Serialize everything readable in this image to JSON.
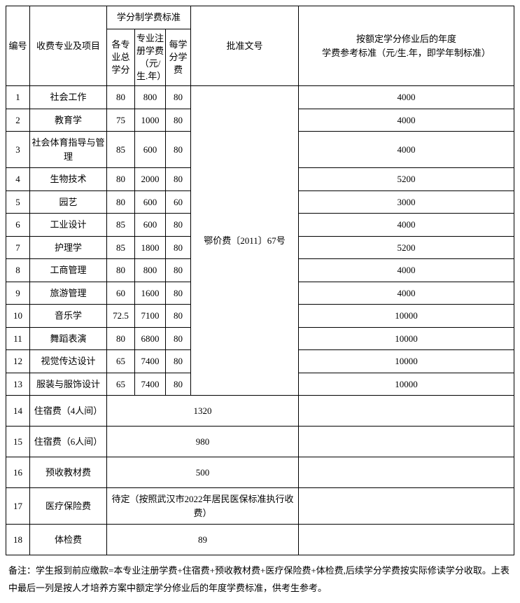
{
  "header": {
    "col_index": "编号",
    "col_item": "收费专业及项目",
    "col_credit_group": "学分制学费标准",
    "col_total_credit": "各专业总学分",
    "col_reg_fee": "专业注册学费（元/生.年）",
    "col_per_credit": "每学分学费",
    "col_approval": "批准文号",
    "col_annual": "按额定学分修业后的年度\n学费参考标准（元/生.年，即学年制标准）"
  },
  "approval_doc": "鄂价费〔2011〕67号",
  "rows": [
    {
      "idx": "1",
      "item": "社会工作",
      "credit": "80",
      "reg": "800",
      "per": "80",
      "annual": "4000"
    },
    {
      "idx": "2",
      "item": "教育学",
      "credit": "75",
      "reg": "1000",
      "per": "80",
      "annual": "4000"
    },
    {
      "idx": "3",
      "item": "社会体育指导与管理",
      "credit": "85",
      "reg": "600",
      "per": "80",
      "annual": "4000"
    },
    {
      "idx": "4",
      "item": "生物技术",
      "credit": "80",
      "reg": "2000",
      "per": "80",
      "annual": "5200"
    },
    {
      "idx": "5",
      "item": "园艺",
      "credit": "80",
      "reg": "600",
      "per": "60",
      "annual": "3000"
    },
    {
      "idx": "6",
      "item": "工业设计",
      "credit": "85",
      "reg": "600",
      "per": "80",
      "annual": "4000"
    },
    {
      "idx": "7",
      "item": "护理学",
      "credit": "85",
      "reg": "1800",
      "per": "80",
      "annual": "5200"
    },
    {
      "idx": "8",
      "item": "工商管理",
      "credit": "80",
      "reg": "800",
      "per": "80",
      "annual": "4000"
    },
    {
      "idx": "9",
      "item": "旅游管理",
      "credit": "60",
      "reg": "1600",
      "per": "80",
      "annual": "4000"
    },
    {
      "idx": "10",
      "item": "音乐学",
      "credit": "72.5",
      "reg": "7100",
      "per": "80",
      "annual": "10000"
    },
    {
      "idx": "11",
      "item": "舞蹈表演",
      "credit": "80",
      "reg": "6800",
      "per": "80",
      "annual": "10000"
    },
    {
      "idx": "12",
      "item": "视觉传达设计",
      "credit": "65",
      "reg": "7400",
      "per": "80",
      "annual": "10000"
    },
    {
      "idx": "13",
      "item": "服装与服饰设计",
      "credit": "65",
      "reg": "7400",
      "per": "80",
      "annual": "10000"
    }
  ],
  "extra_rows": [
    {
      "idx": "14",
      "item": "住宿费（4人间）",
      "value": "1320"
    },
    {
      "idx": "15",
      "item": "住宿费（6人间）",
      "value": "980"
    },
    {
      "idx": "16",
      "item": "预收教材费",
      "value": "500"
    },
    {
      "idx": "17",
      "item": "医疗保险费",
      "value": "待定（按照武汉市2022年居民医保标准执行收费）"
    },
    {
      "idx": "18",
      "item": "体检费",
      "value": "89"
    }
  ],
  "note": "备注：学生报到前应缴款=本专业注册学费+住宿费+预收教材费+医疗保险费+体检费,后续学分学费按实际修读学分收取。上表中最后一列是按人才培养方案中额定学分修业后的年度学费标准，供考生参考。"
}
